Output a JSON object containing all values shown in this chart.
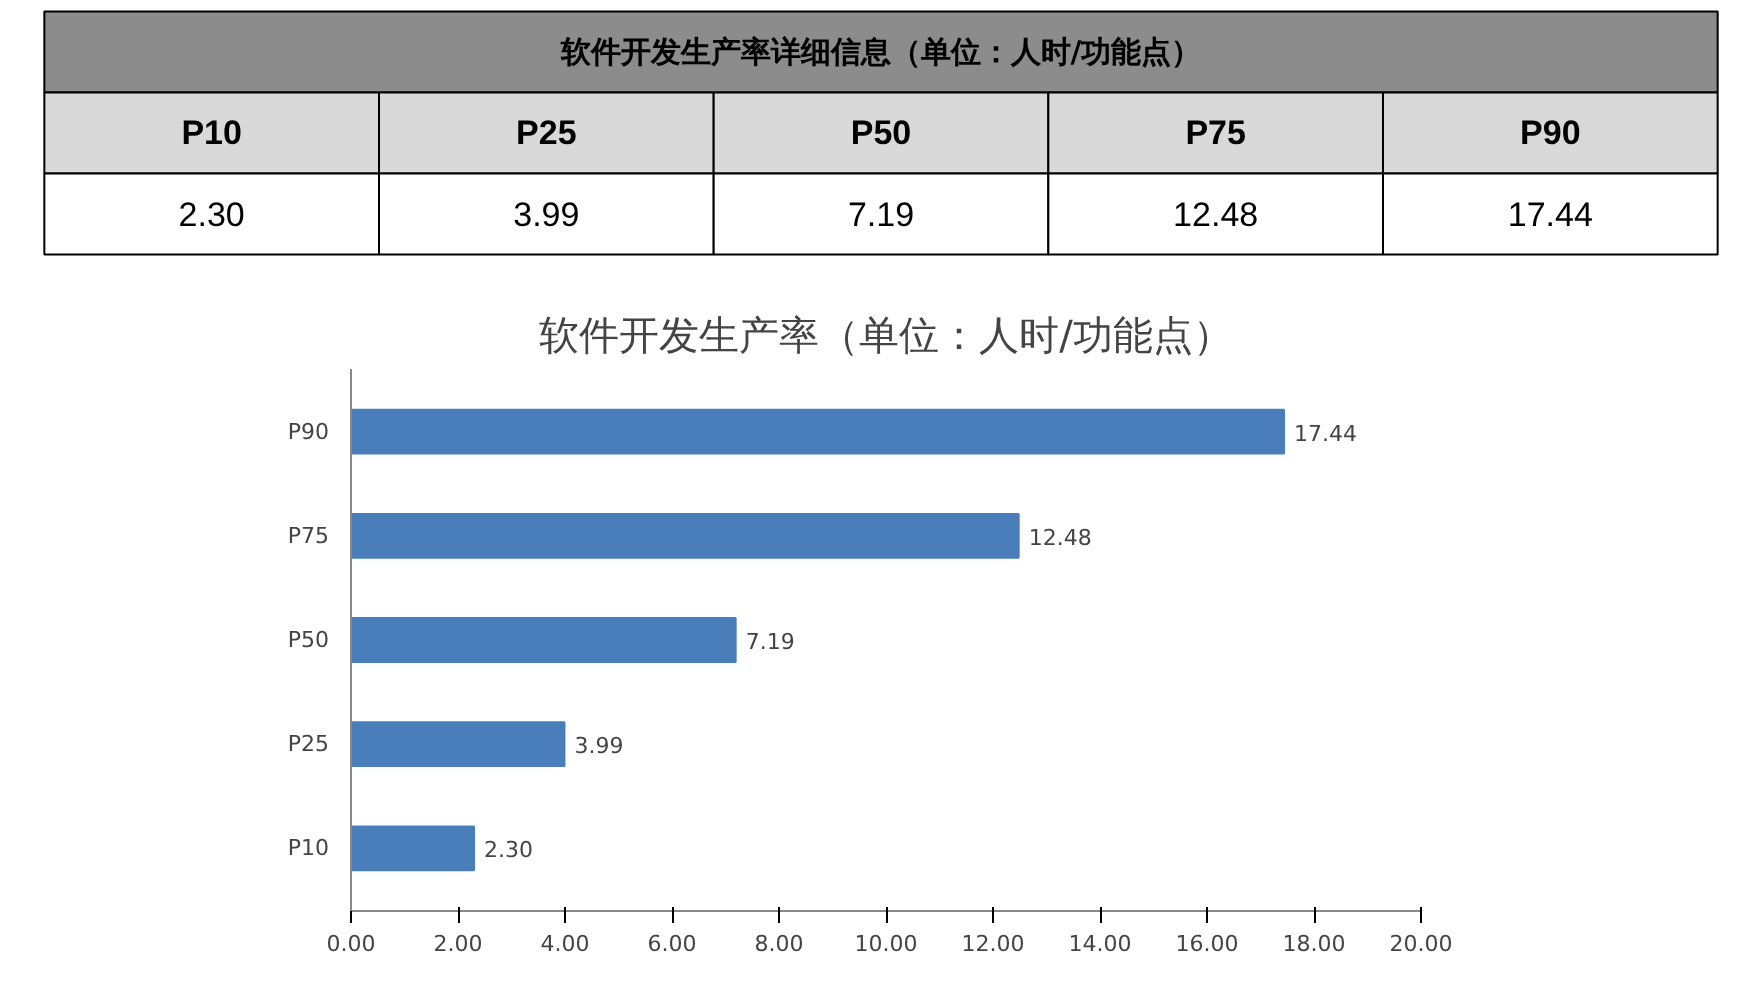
{
  "chart_data": [
    {
      "type": "other",
      "title": "软件开发生产率详细信息（单位：人时/功能点）",
      "annotations": [
        "P10",
        "P25",
        "P50",
        "P75",
        "P90",
        "2.30",
        "3.99",
        "7.19",
        "12.48",
        "17.44"
      ]
    },
    {
      "type": "bar",
      "orientation": "horizontal",
      "title": "软件开发生产率（单位：人时/功能点）",
      "categories": [
        "P90",
        "P75",
        "P50",
        "P25",
        "P10"
      ],
      "values": [
        17.44,
        12.48,
        7.19,
        3.99,
        2.3
      ],
      "value_labels": [
        "17.44",
        "12.48",
        "7.19",
        "3.99",
        "2.30"
      ],
      "color": "#4a7ebb",
      "xlim": [
        0,
        20
      ],
      "xticks": [
        {
          "value": 0,
          "label": "0.00"
        },
        {
          "value": 2,
          "label": "2.00"
        },
        {
          "value": 4,
          "label": "4.00"
        },
        {
          "value": 6,
          "label": "6.00"
        },
        {
          "value": 8,
          "label": "8.00"
        },
        {
          "value": 10,
          "label": "10.00"
        },
        {
          "value": 12,
          "label": "12.00"
        },
        {
          "value": 14,
          "label": "14.00"
        },
        {
          "value": 16,
          "label": "16.00"
        },
        {
          "value": 18,
          "label": "18.00"
        },
        {
          "value": 20,
          "label": "20.00"
        }
      ],
      "grid": false
    }
  ]
}
